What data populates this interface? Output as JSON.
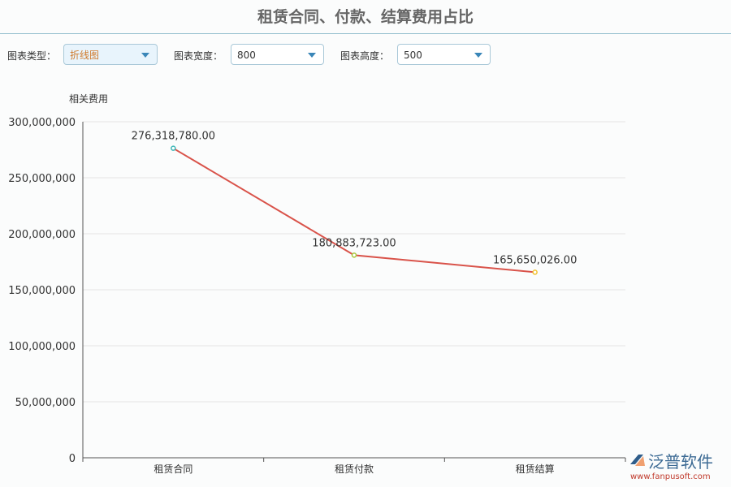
{
  "title": "租赁合同、付款、结算费用占比",
  "controls": [
    {
      "label": "图表类型：",
      "value": "折线图"
    },
    {
      "label": "图表宽度：",
      "value": "800"
    },
    {
      "label": "图表高度：",
      "value": "500"
    }
  ],
  "logo": {
    "text": "泛普软件",
    "url": "www.fanpusoft.com"
  },
  "chart_data": {
    "type": "line",
    "ylabel": "相关费用",
    "categories": [
      "租赁合同",
      "租赁付款",
      "租赁结算"
    ],
    "values": [
      276318780.0,
      180883723.0,
      165650026.0
    ],
    "data_labels": [
      "276,318,780.00",
      "180,883,723.00",
      "165,650,026.00"
    ],
    "point_colors": [
      "#3fb8b8",
      "#a8c83a",
      "#f2c230"
    ],
    "line_color": "#d9534a",
    "ylim": [
      0,
      300000000
    ],
    "yticks": [
      "0",
      "50,000,000",
      "100,000,000",
      "150,000,000",
      "200,000,000",
      "250,000,000",
      "300,000,000"
    ],
    "grid": true
  }
}
